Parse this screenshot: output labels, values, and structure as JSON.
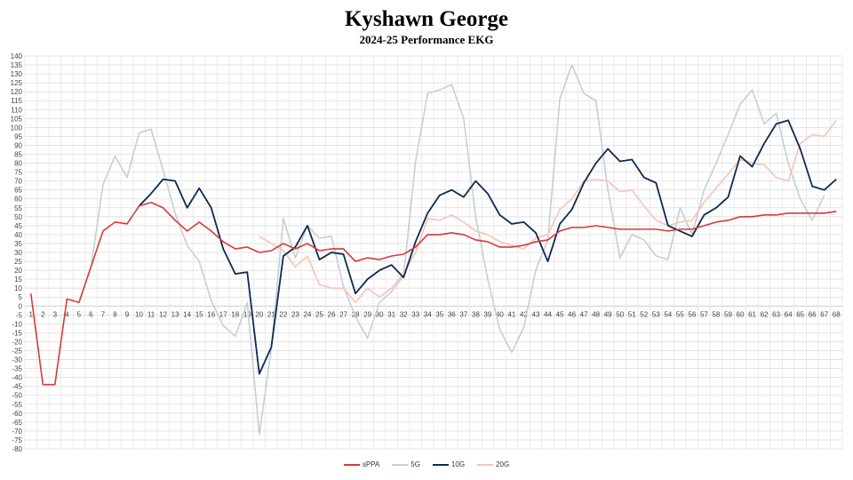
{
  "chart_data": {
    "type": "line",
    "title": "Kyshawn George",
    "subtitle": "2024-25 Performance EKG",
    "xlabel": "",
    "ylabel": "",
    "ylim": [
      -80,
      140
    ],
    "ystep": 5,
    "grid": true,
    "legend_position": "bottom",
    "x": [
      1,
      2,
      3,
      4,
      5,
      6,
      7,
      8,
      9,
      10,
      11,
      12,
      13,
      14,
      15,
      16,
      17,
      18,
      19,
      20,
      21,
      22,
      23,
      24,
      25,
      26,
      27,
      28,
      29,
      30,
      31,
      32,
      33,
      34,
      35,
      36,
      37,
      38,
      39,
      40,
      41,
      42,
      43,
      44,
      45,
      46,
      47,
      48,
      49,
      50,
      51,
      52,
      53,
      54,
      55,
      56,
      57,
      58,
      59,
      60,
      61,
      62,
      63,
      64,
      65,
      66,
      67,
      68
    ],
    "series": [
      {
        "name": "sPPA",
        "color": "#d9393a",
        "width": 1.6,
        "values": [
          7,
          -44,
          -44,
          4,
          2,
          22,
          42,
          47,
          46,
          56,
          58,
          55,
          48,
          42,
          47,
          42,
          36,
          32,
          33,
          30,
          31,
          35,
          32,
          35,
          31,
          32,
          32,
          25,
          27,
          26,
          28,
          29,
          33,
          40,
          40,
          41,
          40,
          37,
          36,
          33,
          33,
          34,
          36,
          37,
          42,
          44,
          44,
          45,
          44,
          43,
          43,
          43,
          43,
          42,
          43,
          43,
          45,
          47,
          48,
          50,
          50,
          51,
          51,
          52,
          52,
          52,
          52,
          53
        ]
      },
      {
        "name": "5G",
        "color": "#c6cfd2",
        "width": 1.6,
        "values": [
          null,
          null,
          null,
          null,
          2,
          22,
          68,
          84,
          72,
          97,
          99,
          76,
          52,
          34,
          25,
          3,
          -11,
          -17,
          2,
          -72,
          -24,
          49,
          27,
          45,
          38,
          39,
          11,
          -6,
          -18,
          2,
          8,
          17,
          81,
          119,
          121,
          124,
          105,
          50,
          15,
          -13,
          -26,
          -12,
          20,
          37,
          116,
          135,
          119,
          115,
          65,
          27,
          40,
          37,
          28,
          26,
          55,
          40,
          65,
          80,
          96,
          113,
          121,
          102,
          108,
          80,
          60,
          48,
          62,
          null
        ]
      },
      {
        "name": "10G",
        "color": "#0d2a52",
        "width": 1.8,
        "values": [
          null,
          null,
          null,
          null,
          null,
          null,
          null,
          null,
          null,
          56,
          63,
          71,
          70,
          55,
          66,
          55,
          32,
          18,
          19,
          -38,
          -23,
          28,
          33,
          45,
          26,
          30,
          29,
          7,
          15,
          20,
          23,
          16,
          36,
          52,
          62,
          65,
          61,
          70,
          63,
          51,
          46,
          47,
          41,
          25,
          46,
          54,
          69,
          80,
          88,
          81,
          82,
          72,
          69,
          45,
          42,
          39,
          51,
          55,
          61,
          84,
          78,
          91,
          102,
          104,
          88,
          67,
          65,
          71
        ]
      },
      {
        "name": "20G",
        "color": "#f7c4b4",
        "width": 1.6,
        "values": [
          null,
          null,
          null,
          null,
          null,
          null,
          null,
          null,
          null,
          null,
          null,
          null,
          null,
          null,
          null,
          null,
          null,
          null,
          null,
          39,
          35,
          31,
          22,
          28,
          12,
          10,
          10,
          2,
          10,
          5,
          10,
          18,
          30,
          49,
          48,
          51,
          47,
          42,
          40,
          36,
          34,
          32,
          38,
          40,
          54,
          60,
          70,
          71,
          70,
          64,
          65,
          56,
          48,
          45,
          47,
          48,
          58,
          66,
          74,
          82,
          80,
          79,
          72,
          70,
          91,
          96,
          95,
          104
        ]
      }
    ]
  }
}
